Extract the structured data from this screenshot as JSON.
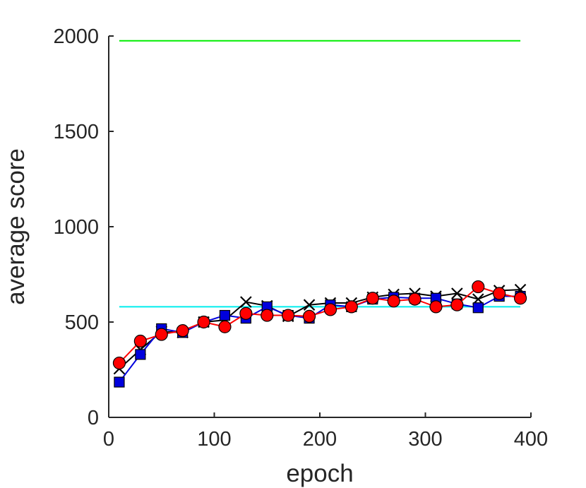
{
  "chart_data": {
    "type": "line",
    "xlabel": "epoch",
    "ylabel": "average score",
    "xlim": [
      0,
      400
    ],
    "ylim": [
      0,
      2000
    ],
    "xticks": [
      0,
      100,
      200,
      300,
      400
    ],
    "yticks": [
      0,
      500,
      1000,
      1500,
      2000
    ],
    "grid": false,
    "box": "left-bottom axes only",
    "x": [
      10,
      30,
      50,
      70,
      90,
      110,
      130,
      150,
      170,
      190,
      210,
      230,
      250,
      270,
      290,
      310,
      330,
      350,
      370,
      390
    ],
    "series": [
      {
        "color": "#000000",
        "marker": "x",
        "values": [
          255,
          355,
          450,
          445,
          500,
          510,
          605,
          585,
          530,
          590,
          600,
          600,
          630,
          645,
          650,
          635,
          650,
          620,
          665,
          670
        ]
      },
      {
        "color": "#0000dd",
        "marker": "square",
        "values": [
          185,
          330,
          465,
          445,
          500,
          535,
          520,
          580,
          535,
          520,
          590,
          580,
          620,
          630,
          625,
          625,
          595,
          575,
          635,
          635
        ]
      },
      {
        "color": "#ff0000",
        "marker": "circle",
        "values": [
          285,
          400,
          435,
          455,
          500,
          475,
          545,
          535,
          535,
          530,
          565,
          580,
          625,
          610,
          620,
          580,
          590,
          685,
          650,
          625
        ]
      }
    ],
    "reference_lines": [
      {
        "color": "#00ee00",
        "value": 1975,
        "x_range": [
          10,
          390
        ]
      },
      {
        "color": "#00eeee",
        "value": 580,
        "x_range": [
          10,
          390
        ]
      }
    ]
  }
}
